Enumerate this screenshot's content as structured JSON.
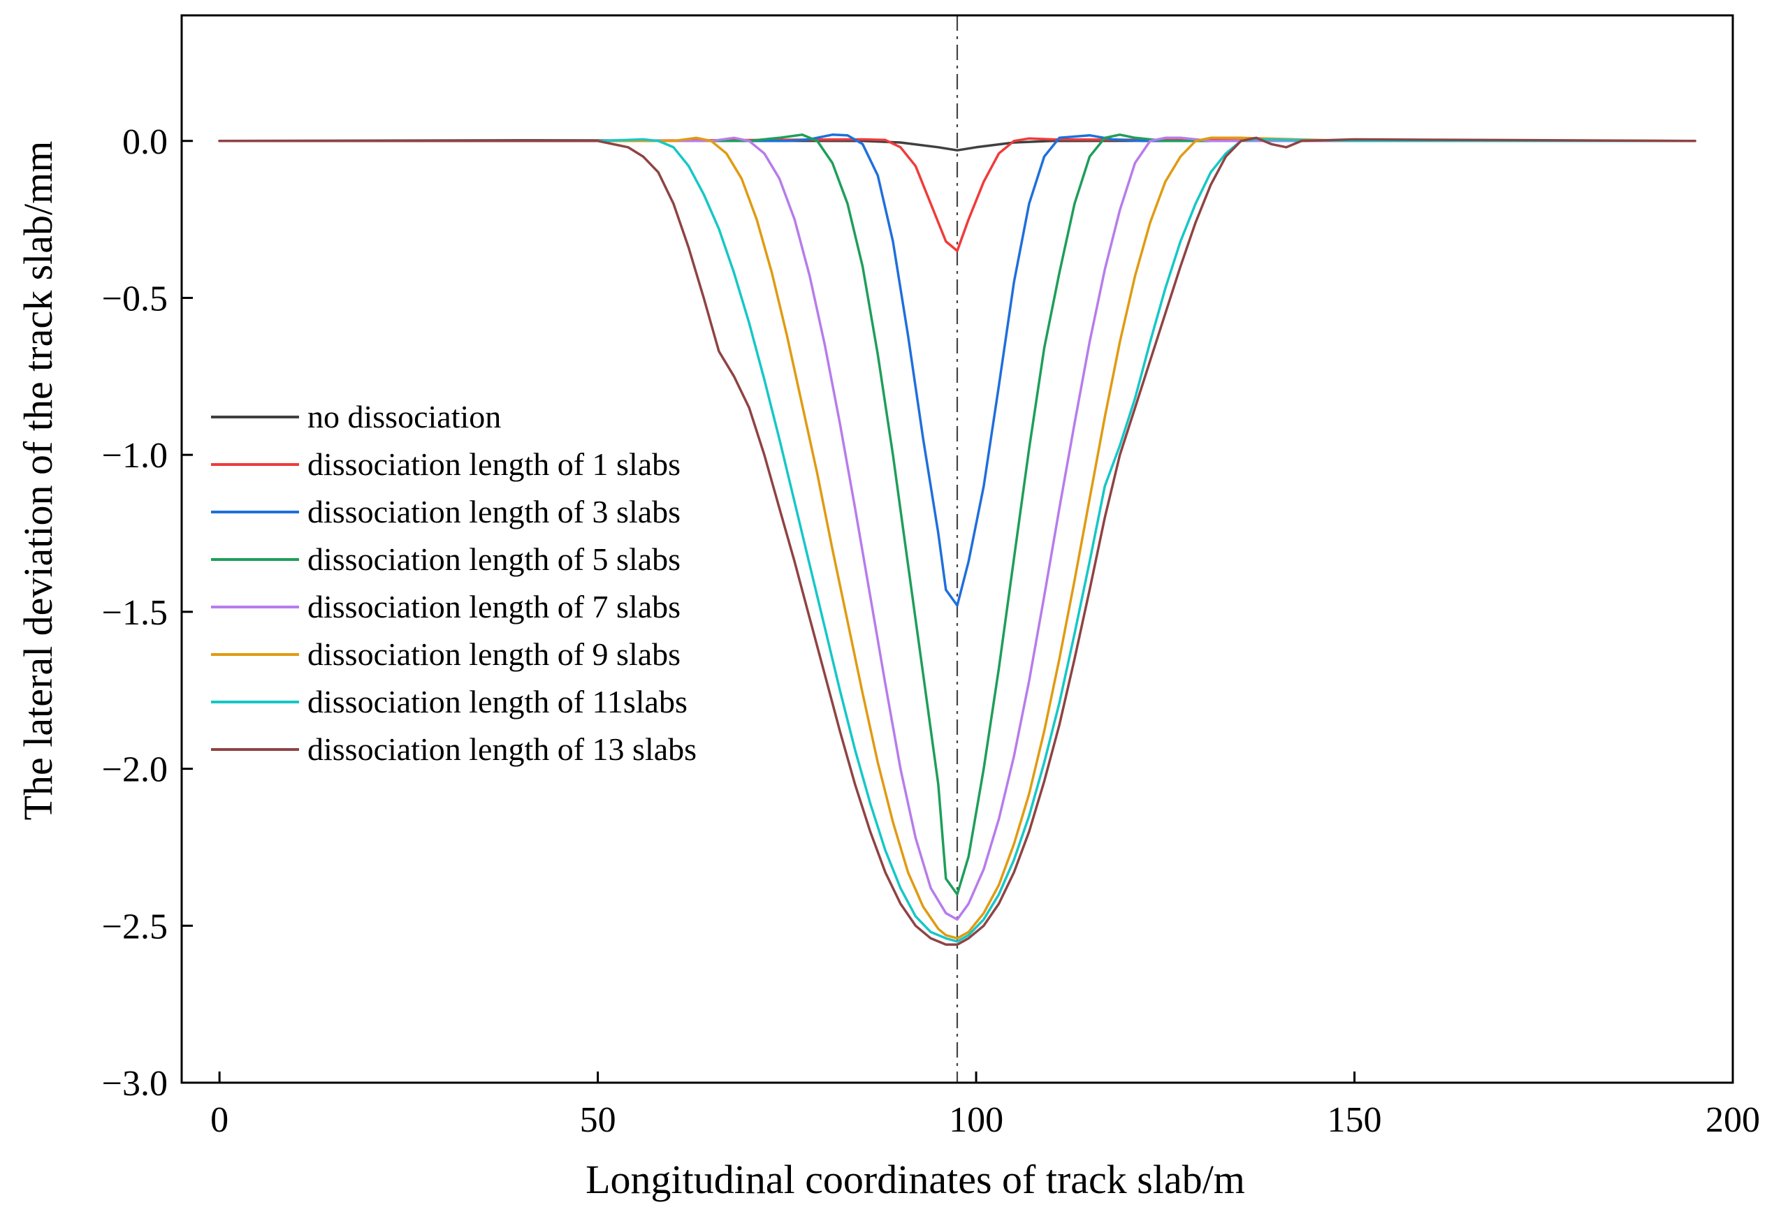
{
  "chart_data": {
    "type": "line",
    "title": "",
    "xlabel": "Longitudinal coordinates of track slab/m",
    "ylabel": "The lateral deviation of the track slab/mm",
    "xlim": [
      -5,
      200
    ],
    "ylim": [
      -3.0,
      0.4
    ],
    "xticks": [
      0,
      50,
      100,
      150,
      200
    ],
    "xtick_labels": [
      "0",
      "50",
      "100",
      "150",
      "200"
    ],
    "yticks": [
      0.0,
      -0.5,
      -1.0,
      -1.5,
      -2.0,
      -2.5,
      -3.0
    ],
    "ytick_labels": [
      "0.0",
      "−0.5",
      "−1.0",
      "−1.5",
      "−2.0",
      "−2.5",
      "−3.0"
    ],
    "grid": false,
    "legend_position": "middle-left",
    "reference_line": {
      "x": 97.5,
      "style": "dash-dot"
    },
    "series": [
      {
        "name": "no dissociation",
        "color": "#404040",
        "x": [
          0,
          40,
          85,
          90,
          95,
          97.5,
          100,
          105,
          110,
          150,
          195
        ],
        "y": [
          0,
          0.002,
          0.0,
          -0.005,
          -0.02,
          -0.03,
          -0.02,
          -0.005,
          0.0,
          0.002,
          0
        ]
      },
      {
        "name": "dissociation length of 1 slabs",
        "color": "#ef3b3b",
        "x": [
          0,
          50,
          85,
          88,
          90,
          92,
          94,
          96,
          97.5,
          99,
          101,
          103,
          105,
          107,
          110,
          150,
          195
        ],
        "y": [
          0,
          0,
          0.005,
          0.003,
          -0.02,
          -0.08,
          -0.2,
          -0.32,
          -0.35,
          -0.25,
          -0.13,
          -0.04,
          0.0,
          0.008,
          0.005,
          0,
          0
        ]
      },
      {
        "name": "dissociation length of 3 slabs",
        "color": "#1f6fdc",
        "x": [
          0,
          50,
          75,
          78,
          81,
          83,
          85,
          87,
          89,
          91,
          93,
          95,
          96,
          97.5,
          99,
          101,
          103,
          105,
          107,
          109,
          111,
          115,
          118,
          122,
          150,
          195
        ],
        "y": [
          0,
          0,
          0,
          0.005,
          0.02,
          0.018,
          -0.01,
          -0.11,
          -0.32,
          -0.62,
          -0.95,
          -1.25,
          -1.43,
          -1.48,
          -1.34,
          -1.1,
          -0.78,
          -0.45,
          -0.2,
          -0.05,
          0.01,
          0.018,
          0.005,
          0,
          0,
          0
        ]
      },
      {
        "name": "dissociation length of 5 slabs",
        "color": "#1e9e5a",
        "x": [
          0,
          50,
          70,
          74,
          77,
          79,
          81,
          83,
          85,
          87,
          89,
          91,
          93,
          95,
          96,
          97.5,
          99,
          101,
          103,
          105,
          107,
          109,
          111,
          113,
          115,
          117,
          119,
          121,
          125,
          150,
          195
        ],
        "y": [
          0,
          0,
          0,
          0.01,
          0.02,
          0.0,
          -0.07,
          -0.2,
          -0.4,
          -0.68,
          -1.0,
          -1.35,
          -1.7,
          -2.05,
          -2.35,
          -2.4,
          -2.28,
          -2.0,
          -1.68,
          -1.33,
          -0.98,
          -0.66,
          -0.42,
          -0.2,
          -0.05,
          0.01,
          0.02,
          0.01,
          0,
          0,
          0
        ]
      },
      {
        "name": "dissociation length of 7 slabs",
        "color": "#b77cec",
        "x": [
          0,
          50,
          65,
          68,
          70,
          72,
          74,
          76,
          78,
          80,
          82,
          84,
          86,
          88,
          90,
          92,
          94,
          96,
          97.5,
          99,
          101,
          103,
          105,
          107,
          109,
          111,
          113,
          115,
          117,
          119,
          121,
          123,
          125,
          127,
          131,
          150,
          195
        ],
        "y": [
          0,
          0,
          0,
          0.01,
          0.0,
          -0.04,
          -0.12,
          -0.25,
          -0.43,
          -0.65,
          -0.9,
          -1.17,
          -1.45,
          -1.73,
          -2.0,
          -2.22,
          -2.38,
          -2.46,
          -2.48,
          -2.43,
          -2.32,
          -2.16,
          -1.96,
          -1.72,
          -1.45,
          -1.17,
          -0.9,
          -0.64,
          -0.41,
          -0.22,
          -0.07,
          0.0,
          0.01,
          0.01,
          0,
          0,
          0
        ]
      },
      {
        "name": "dissociation length of 9 slabs",
        "color": "#e09b12",
        "x": [
          0,
          50,
          60,
          63,
          65,
          67,
          69,
          71,
          73,
          75,
          77,
          79,
          81,
          83,
          85,
          87,
          89,
          91,
          93,
          95,
          96,
          97.5,
          99,
          101,
          103,
          105,
          107,
          109,
          111,
          113,
          115,
          117,
          119,
          121,
          123,
          125,
          127,
          129,
          131,
          135,
          150,
          195
        ],
        "y": [
          0,
          0,
          0,
          0.01,
          0.0,
          -0.04,
          -0.12,
          -0.25,
          -0.42,
          -0.62,
          -0.84,
          -1.06,
          -1.3,
          -1.53,
          -1.76,
          -1.98,
          -2.17,
          -2.33,
          -2.44,
          -2.51,
          -2.53,
          -2.54,
          -2.52,
          -2.46,
          -2.37,
          -2.24,
          -2.08,
          -1.88,
          -1.65,
          -1.4,
          -1.14,
          -0.88,
          -0.64,
          -0.43,
          -0.26,
          -0.13,
          -0.05,
          0.0,
          0.01,
          0.01,
          0,
          0
        ]
      },
      {
        "name": "dissociation length of 11slabs",
        "color": "#16c7c7",
        "x": [
          0,
          50,
          56,
          58,
          60,
          62,
          64,
          66,
          68,
          70,
          72,
          74,
          76,
          78,
          80,
          82,
          84,
          86,
          88,
          90,
          92,
          94,
          96,
          97.5,
          99,
          101,
          103,
          105,
          107,
          109,
          111,
          113,
          115,
          117,
          119,
          121,
          123,
          125,
          127,
          129,
          131,
          133,
          135,
          137,
          150,
          195
        ],
        "y": [
          0,
          0,
          0.005,
          0.0,
          -0.02,
          -0.08,
          -0.17,
          -0.28,
          -0.42,
          -0.58,
          -0.76,
          -0.95,
          -1.15,
          -1.35,
          -1.55,
          -1.75,
          -1.94,
          -2.11,
          -2.26,
          -2.38,
          -2.47,
          -2.52,
          -2.54,
          -2.55,
          -2.53,
          -2.48,
          -2.4,
          -2.29,
          -2.15,
          -1.98,
          -1.79,
          -1.57,
          -1.34,
          -1.1,
          -0.97,
          -0.82,
          -0.64,
          -0.47,
          -0.32,
          -0.2,
          -0.1,
          -0.04,
          0.0,
          0.005,
          0,
          0
        ]
      },
      {
        "name": "dissociation length of 13 slabs",
        "color": "#8f4343",
        "x": [
          0,
          50,
          54,
          56,
          58,
          60,
          62,
          64,
          66,
          68,
          70,
          72,
          74,
          76,
          78,
          80,
          82,
          84,
          86,
          88,
          90,
          92,
          94,
          96,
          97.5,
          99,
          101,
          103,
          105,
          107,
          109,
          111,
          113,
          115,
          117,
          119,
          121,
          123,
          125,
          127,
          129,
          131,
          133,
          135,
          137,
          139,
          141,
          143,
          150,
          195
        ],
        "y": [
          0,
          0,
          -0.02,
          -0.05,
          -0.1,
          -0.2,
          -0.34,
          -0.5,
          -0.67,
          -0.75,
          -0.85,
          -1.0,
          -1.17,
          -1.34,
          -1.52,
          -1.7,
          -1.88,
          -2.05,
          -2.2,
          -2.33,
          -2.43,
          -2.5,
          -2.54,
          -2.56,
          -2.56,
          -2.54,
          -2.5,
          -2.43,
          -2.33,
          -2.2,
          -2.04,
          -1.86,
          -1.65,
          -1.43,
          -1.2,
          -1.0,
          -0.85,
          -0.7,
          -0.55,
          -0.4,
          -0.26,
          -0.14,
          -0.05,
          0.0,
          0.01,
          -0.01,
          -0.02,
          0.0,
          0.005,
          0
        ]
      }
    ]
  }
}
